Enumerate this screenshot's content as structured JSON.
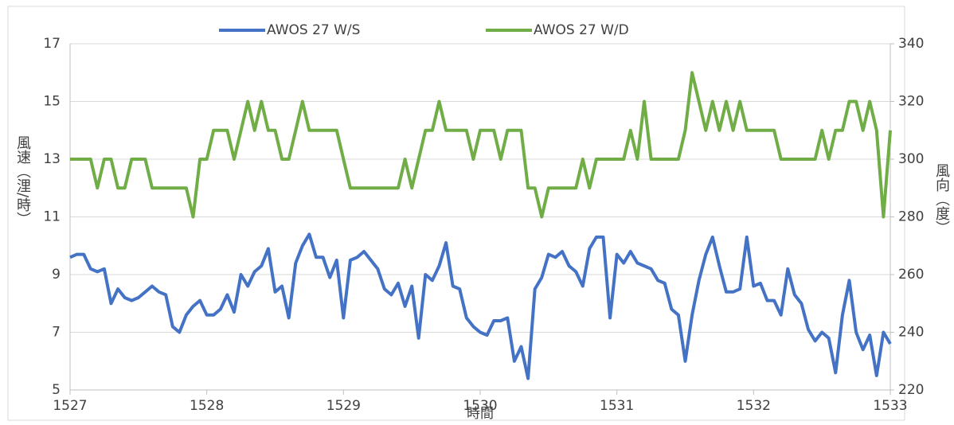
{
  "chart_data": {
    "type": "line",
    "x_label": "時間",
    "y_label": "風速（浬/時）",
    "y2_label": "風向（度）",
    "xlim": [
      1527,
      1533
    ],
    "xticks": [
      1527,
      1528,
      1529,
      1530,
      1531,
      1532,
      1533
    ],
    "ylim": [
      5,
      17
    ],
    "yticks": [
      5,
      7,
      9,
      11,
      13,
      15,
      17
    ],
    "y2lim": [
      220,
      340
    ],
    "y2ticks": [
      220,
      240,
      260,
      280,
      300,
      320,
      340
    ],
    "grid": true,
    "legend": "top",
    "x": [
      1527,
      1527.05,
      1527.1,
      1527.15,
      1527.2,
      1527.25,
      1527.3,
      1527.35,
      1527.4,
      1527.45,
      1527.5,
      1527.55,
      1527.6,
      1527.65,
      1527.7,
      1527.75,
      1527.8,
      1527.85,
      1527.9,
      1527.95,
      1528,
      1528.05,
      1528.1,
      1528.15,
      1528.2,
      1528.25,
      1528.3,
      1528.35,
      1528.4,
      1528.45,
      1528.5,
      1528.55,
      1528.6,
      1528.65,
      1528.7,
      1528.75,
      1528.8,
      1528.85,
      1528.9,
      1528.95,
      1529,
      1529.05,
      1529.1,
      1529.15,
      1529.2,
      1529.25,
      1529.3,
      1529.35,
      1529.4,
      1529.45,
      1529.5,
      1529.55,
      1529.6,
      1529.65,
      1529.7,
      1529.75,
      1529.8,
      1529.85,
      1529.9,
      1529.95,
      1530,
      1530.05,
      1530.1,
      1530.15,
      1530.2,
      1530.25,
      1530.3,
      1530.35,
      1530.4,
      1530.45,
      1530.5,
      1530.55,
      1530.6,
      1530.65,
      1530.7,
      1530.75,
      1530.8,
      1530.85,
      1530.9,
      1530.95,
      1531,
      1531.05,
      1531.1,
      1531.15,
      1531.2,
      1531.25,
      1531.3,
      1531.35,
      1531.4,
      1531.45,
      1531.5,
      1531.55,
      1531.6,
      1531.65,
      1531.7,
      1531.75,
      1531.8,
      1531.85,
      1531.9,
      1531.95,
      1532,
      1532.05,
      1532.1,
      1532.15,
      1532.2,
      1532.25,
      1532.3,
      1532.35,
      1532.4,
      1532.45,
      1532.5,
      1532.55,
      1532.6,
      1532.65,
      1532.7,
      1532.75,
      1532.8,
      1532.85,
      1532.9,
      1532.95,
      1533
    ],
    "series": [
      {
        "name": "AWOS 27 W/S",
        "color": "#4472c4",
        "values": [
          9.6,
          9.7,
          9.7,
          9.2,
          9.1,
          9.2,
          8.0,
          8.5,
          8.2,
          8.1,
          8.2,
          8.4,
          8.6,
          8.4,
          8.3,
          7.2,
          7.0,
          7.6,
          7.9,
          8.1,
          7.6,
          7.6,
          7.8,
          8.3,
          7.7,
          9.0,
          8.6,
          9.1,
          9.3,
          9.9,
          8.4,
          8.6,
          7.5,
          9.4,
          10.0,
          10.4,
          9.6,
          9.6,
          8.9,
          9.5,
          7.5,
          9.5,
          9.6,
          9.8,
          9.5,
          9.2,
          8.5,
          8.3,
          8.7,
          7.9,
          8.6,
          6.8,
          9.0,
          8.8,
          9.3,
          10.1,
          8.6,
          8.5,
          7.5,
          7.2,
          7.0,
          6.9,
          7.4,
          7.4,
          7.5,
          6.0,
          6.5,
          5.4,
          8.5,
          8.9,
          9.7,
          9.6,
          9.8,
          9.3,
          9.1,
          8.6,
          9.9,
          10.3,
          10.3,
          7.5,
          9.7,
          9.4,
          9.8,
          9.4,
          9.3,
          9.2,
          8.8,
          8.7,
          7.8,
          7.6,
          6.0,
          7.6,
          8.8,
          9.7,
          10.3,
          9.3,
          8.4,
          8.4,
          8.5,
          10.3,
          8.6,
          8.7,
          8.1,
          8.1,
          7.6,
          9.2,
          8.3,
          8.0,
          7.1,
          6.7,
          7.0,
          6.8,
          5.6,
          7.6,
          8.8,
          7.0,
          6.4,
          6.9,
          5.5,
          7.0,
          6.6
        ]
      },
      {
        "name": "AWOS 27 W/D",
        "color": "#70ad47",
        "axis": "y2",
        "values": [
          300,
          300,
          300,
          300,
          290,
          300,
          300,
          290,
          290,
          300,
          300,
          300,
          290,
          290,
          290,
          290,
          290,
          290,
          280,
          300,
          300,
          310,
          310,
          310,
          300,
          310,
          320,
          310,
          320,
          310,
          310,
          300,
          300,
          310,
          320,
          310,
          310,
          310,
          310,
          310,
          300,
          290,
          290,
          290,
          290,
          290,
          290,
          290,
          290,
          300,
          290,
          300,
          310,
          310,
          320,
          310,
          310,
          310,
          310,
          300,
          310,
          310,
          310,
          300,
          310,
          310,
          310,
          290,
          290,
          280,
          290,
          290,
          290,
          290,
          290,
          300,
          290,
          300,
          300,
          300,
          300,
          300,
          310,
          300,
          320,
          300,
          300,
          300,
          300,
          300,
          310,
          330,
          320,
          310,
          320,
          310,
          320,
          310,
          320,
          310,
          310,
          310,
          310,
          310,
          300,
          300,
          300,
          300,
          300,
          300,
          310,
          300,
          310,
          310,
          320,
          320,
          310,
          320,
          310,
          280,
          310
        ]
      }
    ]
  }
}
